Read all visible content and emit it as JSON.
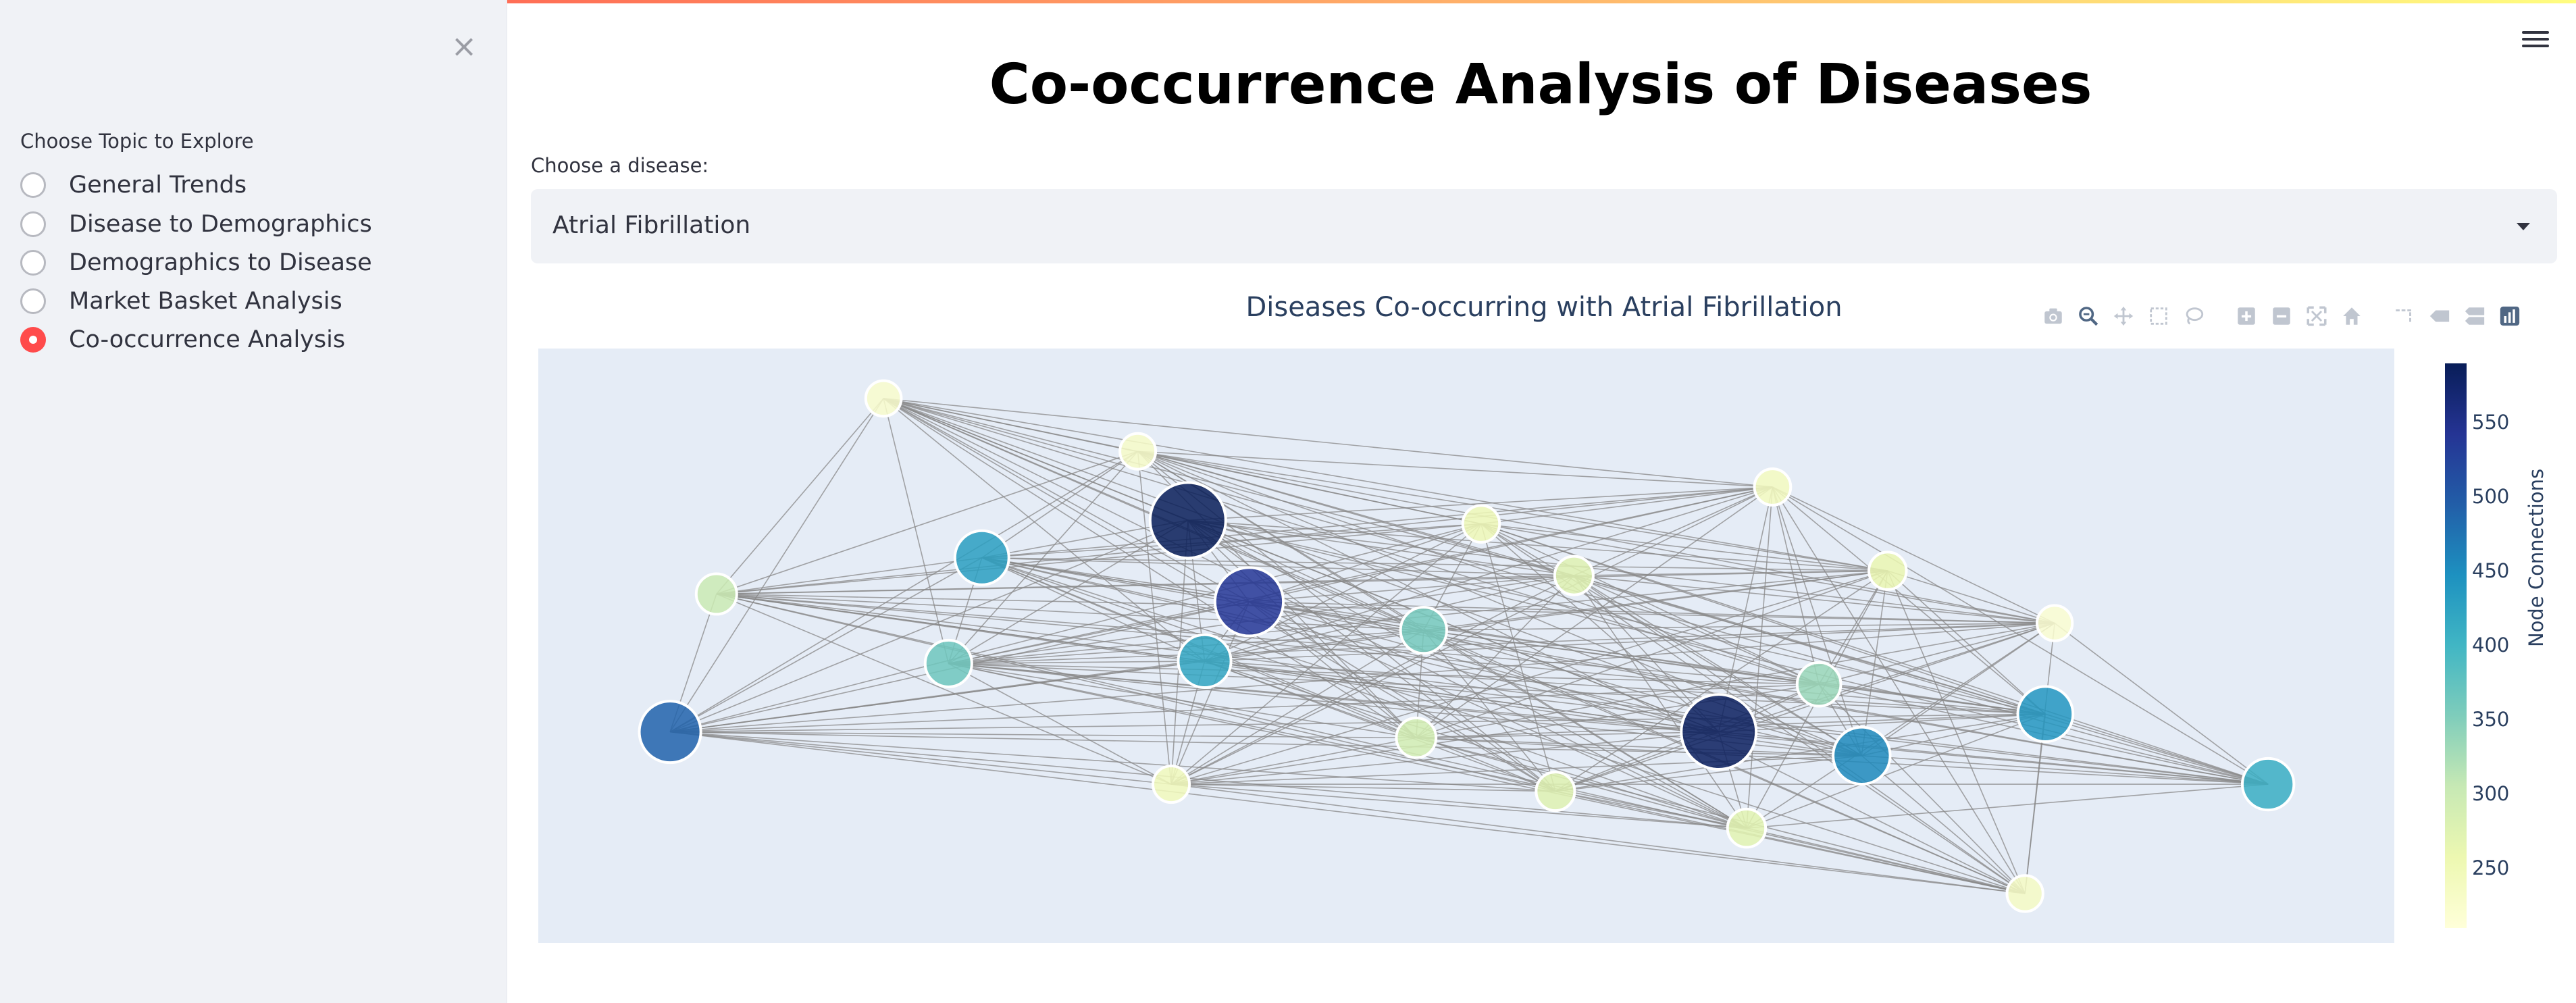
{
  "sidebar": {
    "close_glyph": "×",
    "radio_label": "Choose Topic to Explore",
    "options": [
      {
        "label": "General Trends",
        "selected": false
      },
      {
        "label": "Disease to Demographics",
        "selected": false
      },
      {
        "label": "Demographics to Disease",
        "selected": false
      },
      {
        "label": "Market Basket Analysis",
        "selected": false
      },
      {
        "label": "Co-occurrence Analysis",
        "selected": true
      }
    ]
  },
  "header": {
    "menu_icon": "hamburger-menu-icon"
  },
  "main": {
    "title": "Co-occurrence Analysis of Diseases",
    "select_label": "Choose a disease:",
    "select_value": "Atrial Fibrillation"
  },
  "modebar": {
    "icons": [
      "camera-icon",
      "zoom-icon",
      "pan-icon",
      "box-select-icon",
      "lasso-select-icon",
      "zoom-in-icon",
      "zoom-out-icon",
      "autoscale-icon",
      "reset-axes-icon",
      "spike-lines-icon",
      "hover-closest-icon",
      "hover-compare-icon",
      "plotly-logo-icon"
    ]
  },
  "chart_data": {
    "type": "network",
    "title": "Diseases Co-occurring with Atrial Fibrillation",
    "colorscale": "YlGnBu",
    "colorbar": {
      "title": "Node Connections",
      "ticks": [
        250,
        300,
        350,
        400,
        450,
        500,
        550
      ],
      "range": [
        210,
        590
      ]
    },
    "plot_background": "#e5ecf6",
    "edge_color": "#888888",
    "nodes": [
      {
        "x": 0.186,
        "y": 0.916,
        "value": 225
      },
      {
        "x": 0.323,
        "y": 0.827,
        "value": 230
      },
      {
        "x": 0.665,
        "y": 0.767,
        "value": 240
      },
      {
        "x": 0.35,
        "y": 0.711,
        "value": 590
      },
      {
        "x": 0.508,
        "y": 0.705,
        "value": 250
      },
      {
        "x": 0.239,
        "y": 0.648,
        "value": 430
      },
      {
        "x": 0.727,
        "y": 0.626,
        "value": 260
      },
      {
        "x": 0.558,
        "y": 0.618,
        "value": 275
      },
      {
        "x": 0.383,
        "y": 0.574,
        "value": 540
      },
      {
        "x": 0.096,
        "y": 0.587,
        "value": 300
      },
      {
        "x": 0.817,
        "y": 0.538,
        "value": 220
      },
      {
        "x": 0.477,
        "y": 0.526,
        "value": 360
      },
      {
        "x": 0.221,
        "y": 0.47,
        "value": 365
      },
      {
        "x": 0.359,
        "y": 0.474,
        "value": 420
      },
      {
        "x": 0.69,
        "y": 0.435,
        "value": 335
      },
      {
        "x": 0.812,
        "y": 0.385,
        "value": 440
      },
      {
        "x": 0.071,
        "y": 0.355,
        "value": 490
      },
      {
        "x": 0.473,
        "y": 0.345,
        "value": 290
      },
      {
        "x": 0.636,
        "y": 0.355,
        "value": 585
      },
      {
        "x": 0.713,
        "y": 0.315,
        "value": 455
      },
      {
        "x": 0.341,
        "y": 0.267,
        "value": 245
      },
      {
        "x": 0.548,
        "y": 0.255,
        "value": 275
      },
      {
        "x": 0.651,
        "y": 0.193,
        "value": 270
      },
      {
        "x": 0.932,
        "y": 0.267,
        "value": 410
      },
      {
        "x": 0.801,
        "y": 0.083,
        "value": 235
      }
    ]
  }
}
